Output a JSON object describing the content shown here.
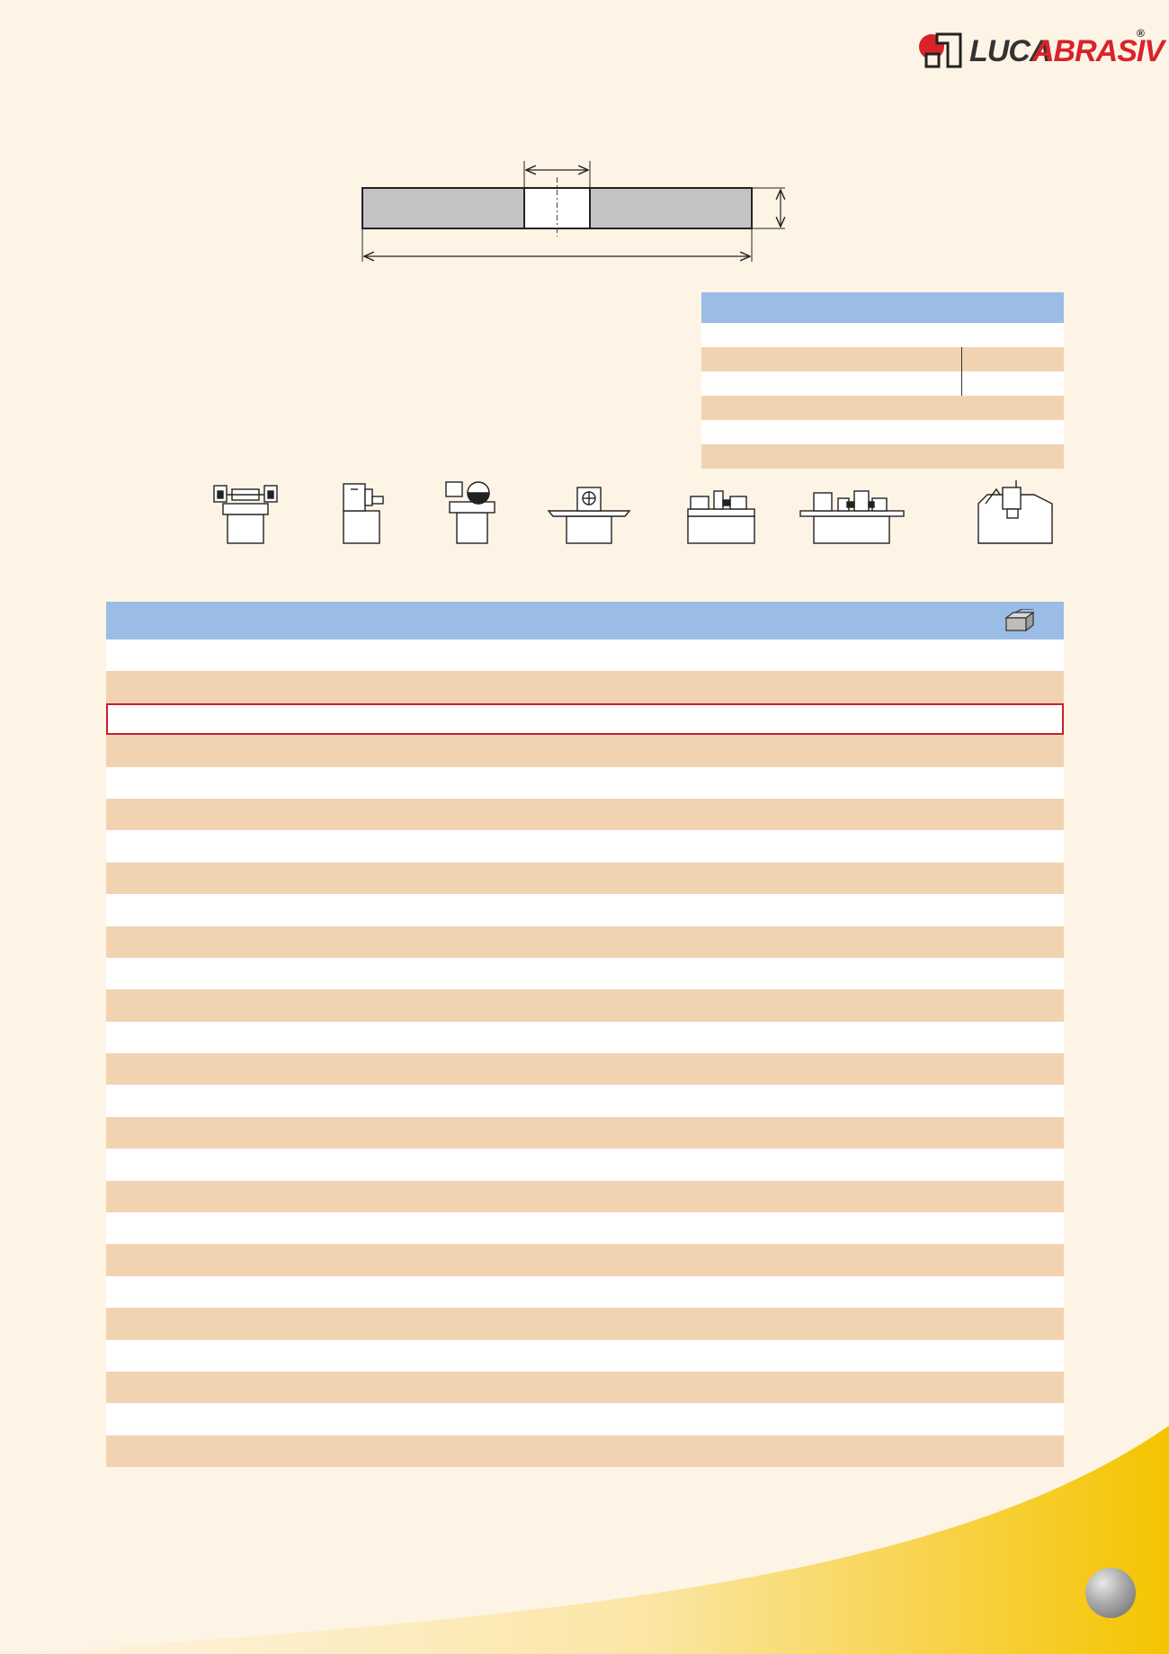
{
  "brand": {
    "name_part1": "LUCA",
    "name_part2": "ABRASIV",
    "registered_mark": "®",
    "colors": {
      "red": "#d8232a",
      "dark": "#333333"
    }
  },
  "colors": {
    "page_background": "#fef4e6",
    "table_header": "#9bbde5",
    "row_tan": "#f2d3b1",
    "row_white": "#ffffff",
    "highlight_border": "#c8202a",
    "corner_yellow": "#f5c400"
  },
  "icons": {
    "machines": [
      "bench-grinder-icon",
      "surface-grinder-icon",
      "cut-off-machine-icon",
      "tool-grinder-icon",
      "cylindrical-grinder-icon",
      "centerless-grinder-icon",
      "cnc-grinder-icon"
    ],
    "main_table_header": "workpiece-box-icon"
  },
  "spec_table": {
    "rows": [
      "white",
      "tan",
      "white",
      "tan",
      "white",
      "tan"
    ],
    "divided_rows": [
      1,
      2
    ]
  },
  "main_table": {
    "highlighted_row": 2,
    "row_count": 26
  }
}
